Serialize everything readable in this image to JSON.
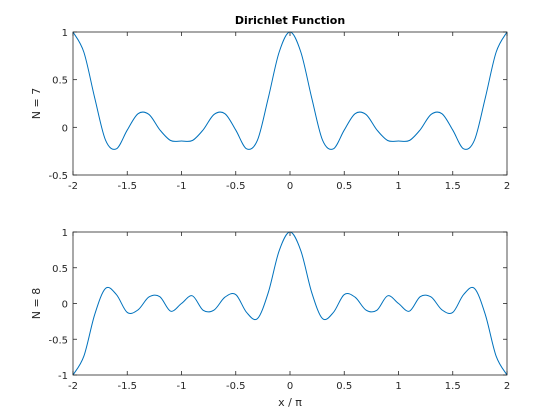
{
  "chart_data": [
    {
      "type": "line",
      "title": "Dirichlet Function",
      "xlabel": "",
      "ylabel": "N = 7",
      "N": 7,
      "xlim": [
        -2,
        2
      ],
      "ylim": [
        -0.5,
        1
      ],
      "xticks": [
        -2,
        -1.5,
        -1,
        -0.5,
        0,
        0.5,
        1,
        1.5,
        2
      ],
      "xtick_labels": [
        "-2",
        "-1.5",
        "-1",
        "-0.5",
        "0",
        "0.5",
        "1",
        "1.5",
        "2"
      ],
      "yticks": [
        -0.5,
        0,
        0.5,
        1
      ],
      "ytick_labels": [
        "-0.5",
        "0",
        "0.5",
        "1"
      ],
      "grid": false,
      "line_color": "#0072BD",
      "series": [
        {
          "x": [
            -2.0,
            -1.9,
            -1.8,
            -1.7,
            -1.6,
            -1.5,
            -1.4,
            -1.3,
            -1.2,
            -1.1,
            -1.0,
            -0.9,
            -0.8,
            -0.7,
            -0.6,
            -0.5,
            -0.4,
            -0.3,
            -0.2,
            -0.1,
            0.0,
            0.1,
            0.2,
            0.3,
            0.4,
            0.5,
            0.6,
            0.7,
            0.8,
            0.9,
            1.0,
            1.1,
            1.2,
            1.3,
            1.4,
            1.5,
            1.6,
            1.7,
            1.8,
            1.9,
            2.0
          ],
          "y": [
            1.0,
            0.7886,
            0.3091,
            -0.1351,
            -0.2252,
            -0.0286,
            0.1431,
            0.1351,
            -0.0258,
            -0.1381,
            -0.1429,
            -0.1381,
            -0.0258,
            0.1351,
            0.1431,
            -0.0286,
            -0.2252,
            -0.1351,
            0.3091,
            0.7886,
            1.0,
            0.7886,
            0.3091,
            -0.1351,
            -0.2252,
            -0.0286,
            0.1431,
            0.1351,
            -0.0258,
            -0.1381,
            -0.1429,
            -0.1381,
            -0.0258,
            0.1351,
            0.1431,
            -0.0286,
            -0.2252,
            -0.1351,
            0.3091,
            0.7886,
            1.0
          ]
        }
      ]
    },
    {
      "type": "line",
      "title": "",
      "xlabel": "x / π",
      "ylabel": "N = 8",
      "N": 8,
      "xlim": [
        -2,
        2
      ],
      "ylim": [
        -1,
        1
      ],
      "xticks": [
        -2,
        -1.5,
        -1,
        -0.5,
        0,
        0.5,
        1,
        1.5,
        2
      ],
      "xtick_labels": [
        "-2",
        "-1.5",
        "-1",
        "-0.5",
        "0",
        "0.5",
        "1",
        "1.5",
        "2"
      ],
      "yticks": [
        -1,
        -0.5,
        0,
        0.5,
        1
      ],
      "ytick_labels": [
        "-1",
        "-0.5",
        "0",
        "0.5",
        "1"
      ],
      "grid": false,
      "line_color": "#0072BD",
      "series": [
        {
          "x": [
            -2.0,
            -1.9,
            -1.8,
            -1.7,
            -1.6,
            -1.5,
            -1.4,
            -1.3,
            -1.2,
            -1.1,
            -1.0,
            -0.9,
            -0.8,
            -0.7,
            -0.6,
            -0.5,
            -0.4,
            -0.3,
            -0.2,
            -0.1,
            0.0,
            0.1,
            0.2,
            0.3,
            0.4,
            0.5,
            0.6,
            0.7,
            0.8,
            0.9,
            1.0,
            1.1,
            1.2,
            1.3,
            1.4,
            1.5,
            1.6,
            1.7,
            1.8,
            1.9,
            2.0
          ],
          "y": [
            -1.0,
            -0.7375,
            -0.1545,
            0.2113,
            0.125,
            -0.125,
            -0.0882,
            0.0912,
            0.0955,
            -0.1076,
            0.0,
            0.1076,
            -0.0955,
            -0.0912,
            0.0882,
            0.125,
            -0.125,
            -0.2113,
            0.1545,
            0.7375,
            1.0,
            0.7375,
            0.1545,
            -0.2113,
            -0.125,
            0.125,
            0.0882,
            -0.0912,
            -0.0955,
            0.1076,
            0.0,
            -0.1076,
            0.0955,
            0.0912,
            -0.0882,
            -0.125,
            0.125,
            0.2113,
            -0.1545,
            -0.7375,
            -1.0
          ]
        }
      ]
    }
  ]
}
